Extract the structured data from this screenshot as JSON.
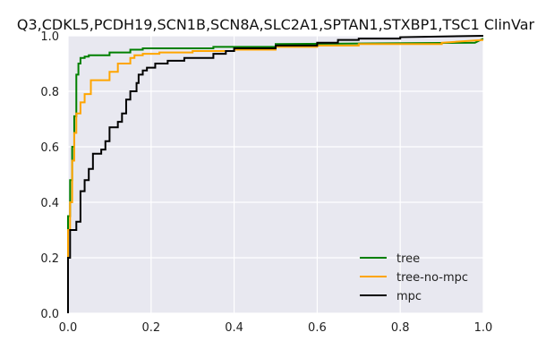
{
  "chart_data": {
    "type": "line",
    "title": "Q3,CDKL5,PCDH19,SCN1B,SCN8A,SLC2A1,SPTAN1,STXBP1,TSC1 ClinVar",
    "xlabel": "",
    "ylabel": "",
    "xlim": [
      0,
      1
    ],
    "ylim": [
      0,
      1
    ],
    "xticks": [
      "0.0",
      "0.2",
      "0.4",
      "0.6",
      "0.8",
      "1.0"
    ],
    "yticks": [
      "0.0",
      "0.2",
      "0.4",
      "0.6",
      "0.8",
      "1.0"
    ],
    "grid": true,
    "legend_position": "lower-right",
    "series": [
      {
        "name": "tree",
        "color": "#008000",
        "x": [
          0,
          0,
          0.005,
          0.005,
          0.01,
          0.01,
          0.015,
          0.015,
          0.02,
          0.02,
          0.025,
          0.025,
          0.03,
          0.03,
          0.04,
          0.04,
          0.05,
          0.05,
          0.1,
          0.1,
          0.15,
          0.15,
          0.18,
          0.18,
          0.35,
          0.35,
          0.5,
          0.5,
          0.98,
          1.0
        ],
        "y": [
          0.12,
          0.35,
          0.35,
          0.48,
          0.48,
          0.6,
          0.6,
          0.71,
          0.71,
          0.86,
          0.86,
          0.9,
          0.9,
          0.92,
          0.92,
          0.925,
          0.925,
          0.93,
          0.93,
          0.94,
          0.94,
          0.95,
          0.95,
          0.955,
          0.955,
          0.96,
          0.96,
          0.97,
          0.975,
          0.99
        ]
      },
      {
        "name": "tree-no-mpc",
        "color": "#ffa500",
        "x": [
          0,
          0,
          0.005,
          0.005,
          0.01,
          0.01,
          0.015,
          0.015,
          0.02,
          0.02,
          0.03,
          0.03,
          0.04,
          0.04,
          0.055,
          0.055,
          0.1,
          0.1,
          0.12,
          0.12,
          0.15,
          0.15,
          0.16,
          0.16,
          0.18,
          0.18,
          0.22,
          0.22,
          0.3,
          0.3,
          0.4,
          0.4,
          0.5,
          0.5,
          0.6,
          0.6,
          0.7,
          0.7,
          0.9,
          0.9,
          1.0
        ],
        "y": [
          0.05,
          0.3,
          0.3,
          0.4,
          0.4,
          0.55,
          0.55,
          0.65,
          0.65,
          0.72,
          0.72,
          0.76,
          0.76,
          0.79,
          0.79,
          0.84,
          0.84,
          0.87,
          0.87,
          0.9,
          0.9,
          0.92,
          0.92,
          0.93,
          0.93,
          0.935,
          0.935,
          0.94,
          0.94,
          0.945,
          0.945,
          0.95,
          0.95,
          0.96,
          0.96,
          0.965,
          0.965,
          0.97,
          0.97,
          0.975,
          0.985
        ]
      },
      {
        "name": "mpc",
        "color": "#000000",
        "x": [
          0,
          0,
          0.005,
          0.005,
          0.02,
          0.02,
          0.03,
          0.03,
          0.04,
          0.04,
          0.05,
          0.05,
          0.06,
          0.06,
          0.08,
          0.08,
          0.09,
          0.09,
          0.1,
          0.1,
          0.12,
          0.12,
          0.13,
          0.13,
          0.14,
          0.14,
          0.15,
          0.15,
          0.165,
          0.165,
          0.17,
          0.17,
          0.18,
          0.18,
          0.19,
          0.19,
          0.21,
          0.21,
          0.24,
          0.24,
          0.28,
          0.28,
          0.35,
          0.35,
          0.38,
          0.38,
          0.4,
          0.4,
          0.5,
          0.5,
          0.6,
          0.6,
          0.65,
          0.65,
          0.7,
          0.7,
          0.8,
          0.8,
          1.0
        ],
        "y": [
          0.0,
          0.2,
          0.2,
          0.3,
          0.3,
          0.33,
          0.33,
          0.44,
          0.44,
          0.48,
          0.48,
          0.52,
          0.52,
          0.575,
          0.575,
          0.59,
          0.59,
          0.62,
          0.62,
          0.67,
          0.67,
          0.69,
          0.69,
          0.72,
          0.72,
          0.77,
          0.77,
          0.8,
          0.8,
          0.83,
          0.83,
          0.86,
          0.86,
          0.875,
          0.875,
          0.885,
          0.885,
          0.9,
          0.9,
          0.91,
          0.91,
          0.92,
          0.92,
          0.935,
          0.935,
          0.945,
          0.945,
          0.955,
          0.955,
          0.965,
          0.965,
          0.975,
          0.975,
          0.985,
          0.985,
          0.99,
          0.99,
          0.995,
          1.0
        ]
      }
    ]
  }
}
